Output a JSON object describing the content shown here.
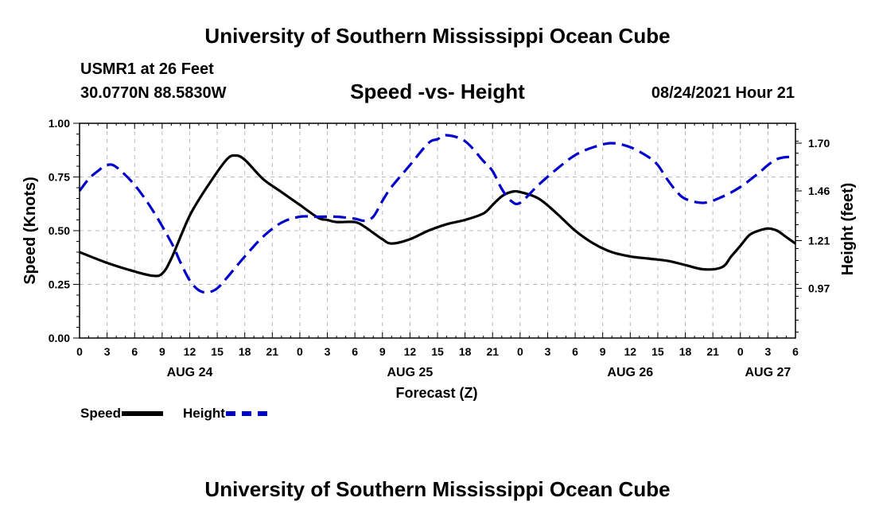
{
  "header": {
    "title": "University of Southern Mississippi Ocean Cube",
    "station": "USMR1 at 26 Feet",
    "coords": "30.0770N  88.5830W",
    "subtitle": "Speed -vs- Height",
    "datehour": "08/24/2021 Hour 21"
  },
  "footer": {
    "title": "University of Southern Mississippi Ocean Cube"
  },
  "legend": {
    "speed": "Speed",
    "height": "Height"
  },
  "colors": {
    "speed": "#000000",
    "height": "#0000cc",
    "grid": "#bbbbbb"
  },
  "chart_data": {
    "type": "line",
    "xlabel": "Forecast (Z)",
    "ylabel": "Speed (Knots)",
    "ylabel_right": "Height (feet)",
    "ylim": [
      0,
      1
    ],
    "ylim_right": [
      0.72,
      1.8
    ],
    "yticks": [
      "0.00",
      "0.25",
      "0.50",
      "0.75",
      "1.00"
    ],
    "yticks_right": [
      "0.97",
      "1.21",
      "1.46",
      "1.70"
    ],
    "x_hours": [
      0,
      78
    ],
    "xtick_labels": [
      "0",
      "3",
      "6",
      "9",
      "12",
      "15",
      "18",
      "21",
      "0",
      "3",
      "6",
      "9",
      "12",
      "15",
      "18",
      "21",
      "0",
      "3",
      "6",
      "9",
      "12",
      "15",
      "18",
      "21",
      "0",
      "3",
      "6"
    ],
    "day_labels": [
      {
        "label": "AUG 24",
        "hour": 12
      },
      {
        "label": "AUG 25",
        "hour": 36
      },
      {
        "label": "AUG 26",
        "hour": 60
      },
      {
        "label": "AUG 27",
        "hour": 75
      }
    ],
    "series": [
      {
        "name": "Speed",
        "axis": "left",
        "x": [
          0,
          3,
          6,
          8,
          9,
          10,
          12,
          14,
          16,
          17,
          18,
          20,
          22,
          24,
          26,
          27,
          28,
          30,
          31,
          32,
          33,
          34,
          36,
          38,
          40,
          42,
          44,
          45,
          46,
          47,
          48,
          50,
          52,
          54,
          56,
          58,
          60,
          62,
          64,
          66,
          68,
          70,
          71,
          72,
          73,
          74,
          75,
          76,
          77,
          78
        ],
        "values": [
          0.4,
          0.35,
          0.31,
          0.29,
          0.3,
          0.37,
          0.57,
          0.71,
          0.83,
          0.85,
          0.83,
          0.74,
          0.68,
          0.62,
          0.56,
          0.55,
          0.54,
          0.54,
          0.52,
          0.49,
          0.46,
          0.44,
          0.46,
          0.5,
          0.53,
          0.55,
          0.58,
          0.62,
          0.66,
          0.68,
          0.68,
          0.65,
          0.58,
          0.5,
          0.44,
          0.4,
          0.38,
          0.37,
          0.36,
          0.34,
          0.32,
          0.33,
          0.38,
          0.43,
          0.48,
          0.5,
          0.51,
          0.5,
          0.47,
          0.44
        ]
      },
      {
        "name": "Height",
        "axis": "right",
        "x": [
          0,
          1,
          2,
          3,
          4,
          6,
          8,
          10,
          11,
          12,
          13,
          14,
          15,
          16,
          18,
          20,
          22,
          24,
          26,
          28,
          30,
          31,
          32,
          33,
          34,
          36,
          38,
          39,
          40,
          42,
          44,
          45,
          46,
          47,
          48,
          50,
          52,
          54,
          56,
          58,
          60,
          62,
          63,
          64,
          65,
          66,
          68,
          70,
          72,
          74,
          75,
          76,
          77,
          78
        ],
        "values": [
          1.46,
          1.52,
          1.56,
          1.59,
          1.58,
          1.49,
          1.36,
          1.2,
          1.1,
          1.01,
          0.96,
          0.95,
          0.97,
          1.02,
          1.13,
          1.23,
          1.3,
          1.33,
          1.33,
          1.33,
          1.32,
          1.31,
          1.33,
          1.41,
          1.48,
          1.59,
          1.7,
          1.72,
          1.74,
          1.71,
          1.61,
          1.56,
          1.47,
          1.41,
          1.4,
          1.49,
          1.57,
          1.64,
          1.68,
          1.7,
          1.68,
          1.63,
          1.59,
          1.52,
          1.46,
          1.42,
          1.4,
          1.43,
          1.48,
          1.55,
          1.59,
          1.62,
          1.63,
          1.63
        ]
      }
    ]
  }
}
